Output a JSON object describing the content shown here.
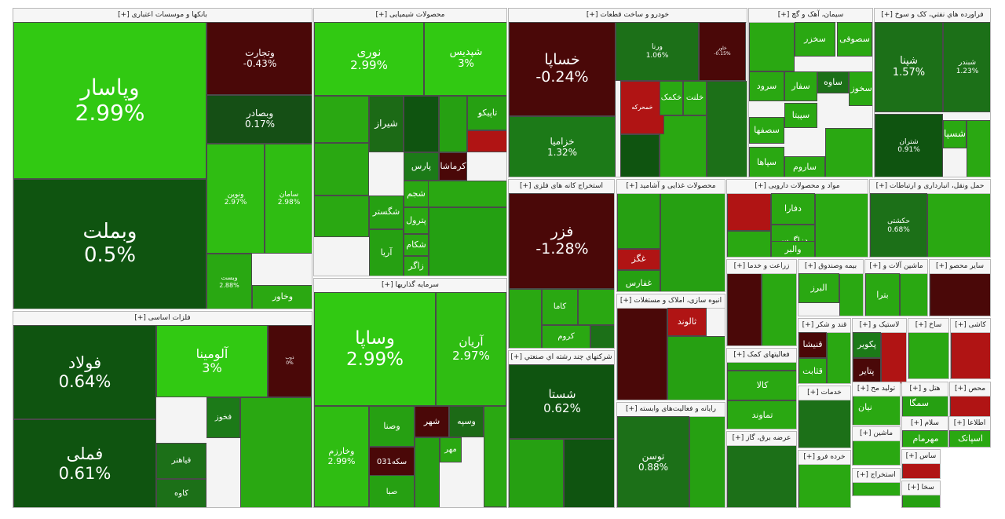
{
  "chart_data": {
    "type": "treemap",
    "sectors": [
      {
        "name": "بانکها و موسسات اعتباری [+]",
        "stocks": [
          {
            "symbol": "وپاسار",
            "change": "2.99%",
            "color": "#31c912"
          },
          {
            "symbol": "وبملت",
            "change": "0.5%",
            "color": "#0f5410"
          },
          {
            "symbol": "وتجارت",
            "change": "-0.43%",
            "color": "#4a0808"
          },
          {
            "symbol": "وبصادر",
            "change": "0.17%",
            "color": "#154f15"
          },
          {
            "symbol": "ونوین",
            "change": "2.97%",
            "color": "#2fbd12"
          },
          {
            "symbol": "سامان",
            "change": "2.98%",
            "color": "#2fbd12"
          },
          {
            "symbol": "وبست",
            "change": "2.88%",
            "color": "#29a812"
          },
          {
            "symbol": "وخاور",
            "change": "",
            "color": "#2ba812"
          }
        ]
      },
      {
        "name": "محصولات شیمیایی [+]",
        "stocks": [
          {
            "symbol": "نوری",
            "change": "2.99%",
            "color": "#31c912"
          },
          {
            "symbol": "شپدیس",
            "change": "3%",
            "color": "#31c912"
          },
          {
            "symbol": "شیراز",
            "change": "",
            "color": "#1c6a16"
          },
          {
            "symbol": "شگستر",
            "change": "",
            "color": "#26a012"
          },
          {
            "symbol": "آریا",
            "change": "",
            "color": "#26a012"
          },
          {
            "symbol": "پارس",
            "change": "",
            "color": "#1c7a18"
          },
          {
            "symbol": "کرماشا",
            "change": "",
            "color": "#4a0808"
          },
          {
            "symbol": "تاپیکو",
            "change": "",
            "color": "#26a012"
          },
          {
            "symbol": "شجم",
            "change": "",
            "color": "#2aa812"
          },
          {
            "symbol": "پترول",
            "change": "",
            "color": "#2aa812"
          },
          {
            "symbol": "شکام",
            "change": "",
            "color": "#2aa812"
          },
          {
            "symbol": "زاگر",
            "change": "",
            "color": "#2aa812"
          }
        ]
      },
      {
        "name": "خودرو و ساخت قطعات [+]",
        "stocks": [
          {
            "symbol": "خساپا",
            "change": "-0.24%",
            "color": "#4a0808"
          },
          {
            "symbol": "خزامیا",
            "change": "1.32%",
            "color": "#1c7a18"
          },
          {
            "symbol": "ورنا",
            "change": "1.06%",
            "color": "#1c7018"
          },
          {
            "symbol": "خاور",
            "change": "-0.15%",
            "color": "#4a0808"
          },
          {
            "symbol": "خمحرکه",
            "change": "",
            "color": "#b01414"
          },
          {
            "symbol": "خکمک",
            "change": "",
            "color": "#2aa812"
          },
          {
            "symbol": "خلنت",
            "change": "",
            "color": "#2aa812"
          }
        ]
      },
      {
        "name": "سیمان، آهک و گچ [+]",
        "stocks": [
          {
            "symbol": "سخزر",
            "change": "",
            "color": "#2aa812"
          },
          {
            "symbol": "سصوفی",
            "change": "",
            "color": "#2aa812"
          },
          {
            "symbol": "سرود",
            "change": "",
            "color": "#2aa812"
          },
          {
            "symbol": "سفار",
            "change": "",
            "color": "#2aa812"
          },
          {
            "symbol": "ساوه",
            "change": "",
            "color": "#1c7018"
          },
          {
            "symbol": "سخوز",
            "change": "",
            "color": "#2aa812"
          },
          {
            "symbol": "سپیتا",
            "change": "",
            "color": "#2aa812"
          },
          {
            "symbol": "سصفها",
            "change": "",
            "color": "#2aa812"
          },
          {
            "symbol": "ساروم",
            "change": "",
            "color": "#2aa812"
          },
          {
            "symbol": "سپاها",
            "change": "",
            "color": "#2aa812"
          }
        ]
      },
      {
        "name": "فراورده هاي نفتي، کک و سوخ [+]",
        "stocks": [
          {
            "symbol": "شپنا",
            "change": "1.57%",
            "color": "#1c7018"
          },
          {
            "symbol": "شبندر",
            "change": "1.23%",
            "color": "#1c7018"
          },
          {
            "symbol": "شتران",
            "change": "0.91%",
            "color": "#0f5410"
          },
          {
            "symbol": "شسپا",
            "change": "",
            "color": "#2aa812"
          }
        ]
      },
      {
        "name": "فلزات اساسی [+]",
        "stocks": [
          {
            "symbol": "فولاد",
            "change": "0.64%",
            "color": "#0f5410"
          },
          {
            "symbol": "فملی",
            "change": "0.61%",
            "color": "#0f5410"
          },
          {
            "symbol": "آلومینا",
            "change": "3%",
            "color": "#31c912"
          },
          {
            "symbol": "ذوب",
            "change": "0%",
            "color": "#4a0808"
          },
          {
            "symbol": "فخوز",
            "change": "",
            "color": "#1c7a18"
          },
          {
            "symbol": "فیاهنر",
            "change": "",
            "color": "#1c7018"
          },
          {
            "symbol": "کاوه",
            "change": "",
            "color": "#1c7018"
          }
        ]
      },
      {
        "name": "سرمایه گذاریها [+]",
        "stocks": [
          {
            "symbol": "وساپا",
            "change": "2.99%",
            "color": "#31c912"
          },
          {
            "symbol": "آریان",
            "change": "2.97%",
            "color": "#2fbd12"
          },
          {
            "symbol": "وخارزم",
            "change": "2.99%",
            "color": "#2fbd12"
          },
          {
            "symbol": "وصنا",
            "change": "",
            "color": "#26a012"
          },
          {
            "symbol": "شهر",
            "change": "",
            "color": "#4a0808"
          },
          {
            "symbol": "وسپه",
            "change": "",
            "color": "#1c6a16"
          },
          {
            "symbol": "سکه031",
            "change": "",
            "color": "#4a0808"
          },
          {
            "symbol": "صبا",
            "change": "",
            "color": "#26a012"
          },
          {
            "symbol": "مهر",
            "change": "",
            "color": "#2aa812"
          }
        ]
      },
      {
        "name": "استخراج کانه های فلزی [+]",
        "stocks": [
          {
            "symbol": "فزر",
            "change": "-1.28%",
            "color": "#4a0808"
          },
          {
            "symbol": "کاما",
            "change": "",
            "color": "#2aa812"
          },
          {
            "symbol": "کروم",
            "change": "",
            "color": "#2aa812"
          }
        ]
      },
      {
        "name": "شرکتهاي چند رشته اي صنعتي [+]",
        "stocks": [
          {
            "symbol": "شستا",
            "change": "0.62%",
            "color": "#0f5410"
          }
        ]
      },
      {
        "name": "محصولات غذایی و آشامید [+]",
        "stocks": [
          {
            "symbol": "غگز",
            "change": "",
            "color": "#b01414"
          },
          {
            "symbol": "غفارس",
            "change": "",
            "color": "#26a012"
          }
        ]
      },
      {
        "name": "مواد و محصولات دارویی [+]",
        "stocks": [
          {
            "symbol": "دفارا",
            "change": "",
            "color": "#2aa812"
          },
          {
            "symbol": "دزاگرس",
            "change": "",
            "color": "#2aa812"
          },
          {
            "symbol": "والبر",
            "change": "",
            "color": "#2aa812"
          }
        ]
      },
      {
        "name": "حمل ونقل، انبارداری و ارتباطات [+]",
        "stocks": [
          {
            "symbol": "حکشتی",
            "change": "0.68%",
            "color": "#1c7018"
          }
        ]
      },
      {
        "name": "انبوه سازی، املاک و مستغلات [+]",
        "stocks": [
          {
            "symbol": "ثالوند",
            "change": "",
            "color": "#b01414"
          }
        ]
      },
      {
        "name": "رایانه و فعالیت‌های وابسته [+]",
        "stocks": [
          {
            "symbol": "توسن",
            "change": "0.88%",
            "color": "#1c7018"
          }
        ]
      },
      {
        "name": "فعالیتهای کمک [+]",
        "stocks": [
          {
            "symbol": "کالا",
            "change": "",
            "color": "#2aa812"
          },
          {
            "symbol": "تماوند",
            "change": "",
            "color": "#2aa812"
          }
        ]
      },
      {
        "name": "قند و شکر [+]",
        "stocks": [
          {
            "symbol": "قنیشا",
            "change": "",
            "color": "#4a0808"
          },
          {
            "symbol": "قثابت",
            "change": "",
            "color": "#2aa812"
          }
        ]
      },
      {
        "name": "لاستیک و [+]",
        "stocks": [
          {
            "symbol": "پکویر",
            "change": "",
            "color": "#1c7a18"
          },
          {
            "symbol": "پتایر",
            "change": "",
            "color": "#4a0808"
          }
        ]
      },
      {
        "name": "ماشین آلات و [+]",
        "stocks": [
          {
            "symbol": "بترا",
            "change": "",
            "color": "#2aa812"
          }
        ]
      },
      {
        "name": "بیمه وصندوق [+]",
        "stocks": [
          {
            "symbol": "البرز",
            "change": "",
            "color": "#2aa812"
          }
        ]
      },
      {
        "name": "زراعت و خدما [+]",
        "stocks": []
      },
      {
        "name": "عرضه برق، گاز [+]",
        "stocks": []
      },
      {
        "name": "خدمات [+]",
        "stocks": []
      },
      {
        "name": "خرده فرو [+]",
        "stocks": []
      },
      {
        "name": "سایر محصو [+]",
        "stocks": []
      },
      {
        "name": "کاشی [+]",
        "stocks": []
      },
      {
        "name": "ساخ [+]",
        "stocks": []
      },
      {
        "name": "تولید مح [+]",
        "stocks": []
      },
      {
        "name": "هتل و [+]",
        "stocks": []
      },
      {
        "name": "محص [+]",
        "stocks": []
      },
      {
        "name": "اطلاعا [+]",
        "stocks": [
          {
            "symbol": "اسپاتک",
            "change": "",
            "color": "#2aa812"
          }
        ]
      },
      {
        "name": "سلام [+]",
        "stocks": [
          {
            "symbol": "مهرمام",
            "change": "",
            "color": "#2aa812"
          }
        ]
      },
      {
        "name": "ماشین [+]",
        "stocks": []
      },
      {
        "name": "ساس [+]",
        "stocks": []
      },
      {
        "name": "استخراج [+]",
        "stocks": []
      },
      {
        "name": "سخا [+]",
        "stocks": []
      }
    ],
    "extra_labels": [
      "سمگا",
      "نیان",
      "سبزوا",
      "فسرب",
      "ثشرق"
    ]
  }
}
